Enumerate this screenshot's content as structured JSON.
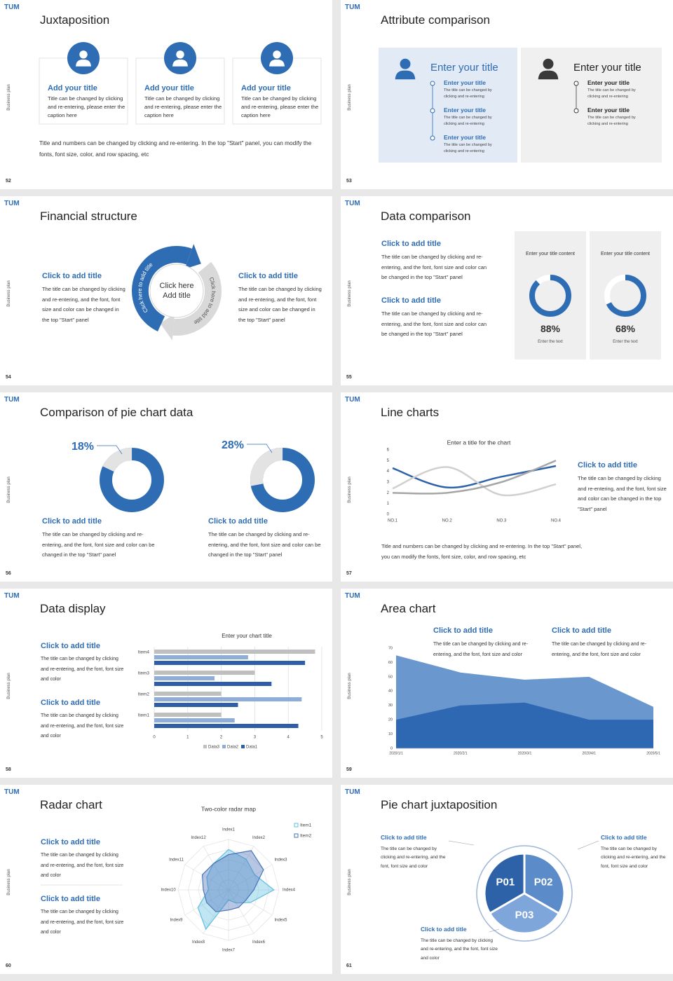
{
  "logo": "TUM",
  "side_label": "Business plan",
  "slides": [
    {
      "number": "52",
      "title": "Juxtaposition",
      "cards": [
        {
          "title": "Add your title",
          "text": "Title can be changed by clicking and re-entering, please enter the caption here"
        },
        {
          "title": "Add your title",
          "text": "Title can be changed by clicking and re-entering, please enter the caption here"
        },
        {
          "title": "Add your title",
          "text": "Title can be changed by clicking and re-entering, please enter the caption here"
        }
      ],
      "note": "Title and numbers can be changed by clicking and re-entering. In the top \"Start\" panel, you can modify the fonts, font size, color, and row spacing, etc"
    },
    {
      "number": "53",
      "title": "Attribute comparison",
      "panels": [
        {
          "title": "Enter your title",
          "items": [
            {
              "title": "Enter your title",
              "text": "The title can be changed by clicking and re-entering"
            },
            {
              "title": "Enter your title",
              "text": "The title can be changed by clicking and re-entering"
            },
            {
              "title": "Enter your title",
              "text": "The title can be changed by clicking and re-entering"
            }
          ]
        },
        {
          "title": "Enter your title",
          "items": [
            {
              "title": "Enter your title",
              "text": "The title can be changed by clicking and re-entering"
            },
            {
              "title": "Enter your title",
              "text": "The title can be changed by clicking and re-entering"
            }
          ]
        }
      ]
    },
    {
      "number": "54",
      "title": "Financial structure",
      "blocks": [
        {
          "title": "Click to add title",
          "text": "The title can be changed by clicking and re-entering, and the font, font size and color can be changed in the top \"Start\" panel"
        },
        {
          "title": "Click to add title",
          "text": "The title can be changed by clicking and re-entering, and the font, font size and color can be changed in the top \"Start\" panel"
        }
      ],
      "center": "Click here Add title",
      "arrows": [
        "Click here to add title",
        "Click here to add title"
      ]
    },
    {
      "number": "55",
      "title": "Data comparison",
      "blocks": [
        {
          "title": "Click to add title",
          "text": "The title can be changed by clicking and re-entering, and the font, font size and color can be changed in the top \"Start\" panel"
        },
        {
          "title": "Click to add title",
          "text": "The title can be changed by clicking and re-entering, and the font, font size and color can be changed in the top \"Start\" panel"
        }
      ],
      "cards": [
        {
          "heading": "Enter your title content",
          "value": 88,
          "label": "88%",
          "caption": "Enter the text"
        },
        {
          "heading": "Enter your title content",
          "value": 68,
          "label": "68%",
          "caption": "Enter the text"
        }
      ]
    },
    {
      "number": "56",
      "title": "Comparison of pie chart data",
      "donuts": [
        {
          "value": 18,
          "label": "18%"
        },
        {
          "value": 28,
          "label": "28%"
        }
      ],
      "blocks": [
        {
          "title": "Click to add title",
          "text": "The title can be changed by clicking and re-entering, and the font, font size and color can be changed in the top \"Start\" panel"
        },
        {
          "title": "Click to add title",
          "text": "The title can be changed by clicking and re-entering, and the font, font size and color can be changed in the top \"Start\" panel"
        }
      ]
    },
    {
      "number": "57",
      "title": "Line charts",
      "chart": {
        "type": "line",
        "title": "Enter a title for the chart",
        "categories": [
          "NO.1",
          "NO.2",
          "NO.3",
          "NO.4"
        ],
        "series": [
          {
            "color": "#2e62a8",
            "values": [
              4.3,
              2.5,
              3.5,
              4.5
            ]
          },
          {
            "color": "#d0d0d0",
            "values": [
              2.4,
              4.4,
              1.8,
              2.8
            ]
          },
          {
            "color": "#a6a6a6",
            "values": [
              2,
              2,
              3,
              5
            ]
          }
        ],
        "ylim": [
          0,
          6
        ],
        "yticks": [
          0,
          1,
          2,
          3,
          4,
          5,
          6
        ]
      },
      "blocks": [
        {
          "title": "Click to add title",
          "text": "The title can be changed by clicking and re-entering, and the font, font size and color can be changed in the top \"Start\" panel"
        }
      ],
      "note": "Title and numbers can be changed by clicking and re-entering. In the top \"Start\" panel, you can modify the fonts, font size, color, and row spacing, etc"
    },
    {
      "number": "58",
      "title": "Data display",
      "blocks": [
        {
          "title": "Click to add title",
          "text": "The title can be changed by clicking and re-entering, and the font, font size and color"
        },
        {
          "title": "Click to add title",
          "text": "The title can be changed by clicking and re-entering, and the font, font size and color"
        }
      ],
      "chart": {
        "type": "bar",
        "title": "Enter your chart title",
        "categories": [
          "Item1",
          "Item2",
          "Item3",
          "Item4"
        ],
        "series": [
          {
            "name": "Data3",
            "color": "#bfbfbf",
            "values": [
              2,
              2,
              3,
              4.8
            ]
          },
          {
            "name": "Data2",
            "color": "#8fadd9",
            "values": [
              2.4,
              4.4,
              1.8,
              2.8
            ]
          },
          {
            "name": "Data1",
            "color": "#2e5ea8",
            "values": [
              4.3,
              2.5,
              3.5,
              4.5
            ]
          }
        ],
        "xlim": [
          0,
          5
        ],
        "xticks": [
          0,
          1,
          2,
          3,
          4,
          5
        ],
        "grid": true,
        "legend": "bottom"
      }
    },
    {
      "number": "59",
      "title": "Area chart",
      "blocks": [
        {
          "title": "Click to add title",
          "text": "The title can be changed by clicking and re-entering, and the font, font size and color"
        },
        {
          "title": "Click to add title",
          "text": "The title can be changed by clicking and re-entering, and the font, font size and color"
        }
      ],
      "chart": {
        "type": "area",
        "x": [
          "2020/1/1",
          "2020/2/1",
          "2020/3/1",
          "2020/4/1",
          "2020/5/1"
        ],
        "series": [
          {
            "color": "#6b97cf",
            "values": [
              65,
              53,
              48,
              50,
              29
            ]
          },
          {
            "color": "#2e68b2",
            "values": [
              20,
              30,
              32,
              20,
              20
            ]
          }
        ],
        "ylim": [
          0,
          70
        ],
        "yticks": [
          0,
          10,
          20,
          30,
          40,
          50,
          60,
          70
        ]
      }
    },
    {
      "number": "60",
      "title": "Radar chart",
      "blocks": [
        {
          "title": "Click to add title",
          "text": "The title can be changed by clicking and re-entering, and the font, font size and color"
        },
        {
          "title": "Click to add title",
          "text": "The title can be changed by clicking and re-entering, and the font, font size and color"
        }
      ],
      "chart": {
        "type": "radar",
        "title": "Two-color radar map",
        "categories": [
          "Index1",
          "Index2",
          "Index3",
          "Index4",
          "Index5",
          "Index6",
          "Index7",
          "Index8",
          "Index9",
          "Index10",
          "Index11",
          "Index12"
        ],
        "series": [
          {
            "name": "Item1",
            "color": "#62bfe0",
            "values": [
              8,
              7,
              6,
              9,
              5,
              3,
              2,
              9,
              7,
              4,
              5,
              6
            ]
          },
          {
            "name": "Item2",
            "color": "#4a72b8",
            "values": [
              7,
              9,
              8,
              5,
              4,
              4,
              4,
              5,
              5,
              5,
              6,
              6
            ]
          }
        ],
        "rlim": [
          0,
          10
        ],
        "legend": "top-right"
      }
    },
    {
      "number": "61",
      "title": "Pie chart juxtaposition",
      "segments": [
        "P01",
        "P02",
        "P03"
      ],
      "blocks": [
        {
          "title": "Click to add title",
          "text": "The title can be changed by clicking and re-entering, and the font, font size and color"
        },
        {
          "title": "Click to add title",
          "text": "The title can be changed by clicking and re-entering, and the font, font size and color"
        },
        {
          "title": "Click to add title",
          "text": "The title can be changed by clicking and re-entering, and the font, font size and color"
        }
      ]
    }
  ]
}
